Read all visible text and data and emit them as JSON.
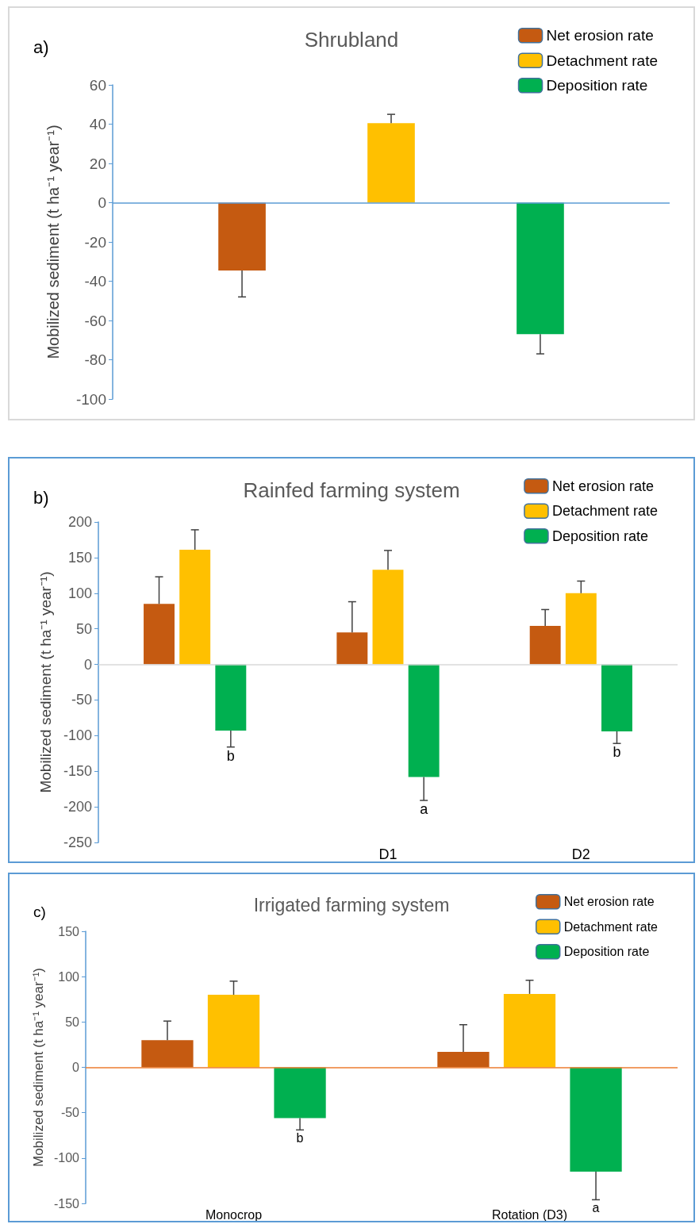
{
  "chart_data": [
    {
      "type": "bar",
      "title": "Shrubland",
      "ylabel": "Mobilized sediment (t ha⁻¹ year⁻¹)",
      "categories": [
        null
      ],
      "series": [
        {
          "name": "Net erosion rate",
          "color": "#c55a11",
          "values": [
            -34.5
          ],
          "errors": [
            [
              -48,
              -34.5
            ]
          ]
        },
        {
          "name": "Detachment rate",
          "color": "#ffc000",
          "values": [
            40.5
          ],
          "errors": [
            [
              40.5,
              45
            ]
          ]
        },
        {
          "name": "Deposition rate",
          "color": "#00b050",
          "values": [
            -67
          ],
          "errors": [
            [
              -77,
              -67
            ]
          ]
        }
      ],
      "ylim": [
        -100,
        60
      ],
      "yticks": [
        -100,
        -80,
        -60,
        -40,
        -20,
        0,
        20,
        40,
        60
      ],
      "grid": false,
      "legend": "top right",
      "ref_lines": [
        {
          "axis": "y",
          "value": 0,
          "color": "#5b9bd5"
        }
      ],
      "annotations": [
        "a)"
      ]
    },
    {
      "type": "bar",
      "title": "Rainfed farming system",
      "ylabel": "Mobilized sediment (t ha⁻¹ year⁻¹)",
      "categories": [
        null,
        "D1",
        "D2"
      ],
      "series": [
        {
          "name": "Net erosion rate",
          "color": "#c55a11",
          "values": [
            85,
            45,
            54
          ],
          "errors": [
            [
              85,
              123
            ],
            [
              45,
              88
            ],
            [
              54,
              77
            ]
          ]
        },
        {
          "name": "Detachment rate",
          "color": "#ffc000",
          "values": [
            161,
            133,
            100
          ],
          "errors": [
            [
              161,
              189
            ],
            [
              133,
              160
            ],
            [
              100,
              117
            ]
          ]
        },
        {
          "name": "Deposition rate",
          "color": "#00b050",
          "values": [
            -93,
            -158,
            -94
          ],
          "errors": [
            [
              -116,
              -93
            ],
            [
              -191,
              -158
            ],
            [
              -111,
              -94
            ]
          ]
        }
      ],
      "ylim": [
        -250,
        200
      ],
      "yticks": [
        -250,
        -200,
        -150,
        -100,
        -50,
        0,
        50,
        100,
        150,
        200
      ],
      "grid": false,
      "legend": "top right",
      "ref_lines": [
        {
          "axis": "y",
          "value": 0,
          "color": "#d9d9d9"
        }
      ],
      "annotations": [
        "b)",
        "b",
        "a",
        "b"
      ]
    },
    {
      "type": "bar",
      "title": "Irrigated farming system",
      "ylabel": "Mobilized sediment (t ha⁻¹ year⁻¹)",
      "categories": [
        "Monocrop",
        "Rotation (D3)"
      ],
      "series": [
        {
          "name": "Net erosion rate",
          "color": "#c55a11",
          "values": [
            30,
            17
          ],
          "errors": [
            [
              30,
              51
            ],
            [
              17,
              47
            ]
          ]
        },
        {
          "name": "Detachment rate",
          "color": "#ffc000",
          "values": [
            80,
            81
          ],
          "errors": [
            [
              80,
              95
            ],
            [
              81,
              96
            ]
          ]
        },
        {
          "name": "Deposition rate",
          "color": "#00b050",
          "values": [
            -56,
            -115
          ],
          "errors": [
            [
              -69,
              -56
            ],
            [
              -146,
              -115
            ]
          ]
        }
      ],
      "ylim": [
        -150,
        150
      ],
      "yticks": [
        -150,
        -100,
        -50,
        0,
        50,
        100,
        150
      ],
      "grid": false,
      "legend": "top right",
      "ref_lines": [
        {
          "axis": "y",
          "value": 0,
          "color": "#ed7d31"
        }
      ],
      "annotations": [
        "c)",
        "b",
        "a"
      ]
    }
  ]
}
